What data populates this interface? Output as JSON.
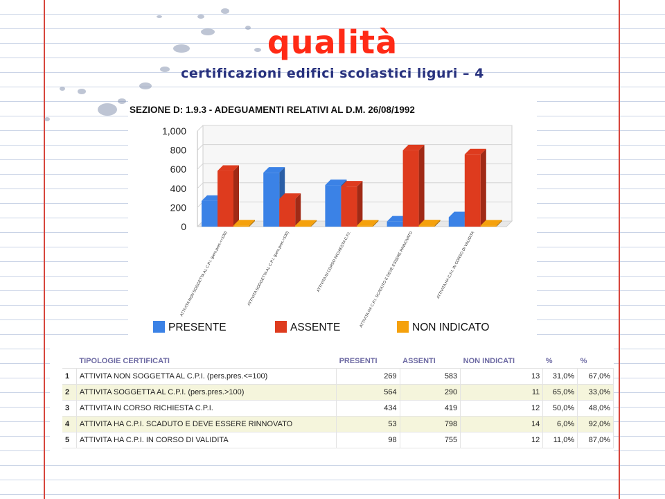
{
  "header": {
    "title": "qualità",
    "subtitle": "certificazioni edifici scolastici liguri – 4"
  },
  "colors": {
    "title": "#ff2a16",
    "subtitle": "#27317e",
    "margin_line": "#d7453c",
    "presente": "#3b82e6",
    "assente": "#de3b1e",
    "non_indicato": "#f5a10c",
    "row_highlight": "#f5f5dc"
  },
  "chart_data": {
    "type": "bar",
    "title": "SEZIONE D: 1.9.3 - ADEGUAMENTI RELATIVI AL D.M. 26/08/1992",
    "categories": [
      "ATTIVITA NON SOGGETTA AL C.P.I. (pers.pres.<=100)",
      "ATTIVITA SOGGETTA AL C.P.I. (pers.pres.>100)",
      "ATTIVITA IN CORSO RICHIESTA C.P.I.",
      "ATTIVITA HA C.P.I. SCADUTO E DEVE ESSERE RINNOVATO",
      "ATTIVITA HA C.P.I. IN CORSO DI VALIDITA"
    ],
    "series": [
      {
        "name": "PRESENTE",
        "values": [
          269,
          564,
          434,
          53,
          98
        ]
      },
      {
        "name": "ASSENTE",
        "values": [
          583,
          290,
          419,
          798,
          755
        ]
      },
      {
        "name": "NON INDICATO",
        "values": [
          13,
          11,
          12,
          14,
          12
        ]
      }
    ],
    "yticks": [
      "0",
      "200",
      "400",
      "600",
      "800",
      "1,000"
    ],
    "ylim": [
      0,
      1000
    ],
    "grid": true,
    "legend": "bottom"
  },
  "table": {
    "headers": [
      "TIPOLOGIE CERTIFICATI",
      "PRESENTI",
      "ASSENTI",
      "NON INDICATI",
      "%",
      "%"
    ],
    "rows": [
      {
        "n": "1",
        "tipologia": "ATTIVITA NON SOGGETTA AL C.P.I. (pers.pres.<=100)",
        "presenti": "269",
        "assenti": "583",
        "non_indicati": "13",
        "pct_presenti": "31,0%",
        "pct_assenti": "67,0%"
      },
      {
        "n": "2",
        "tipologia": "ATTIVITA SOGGETTA AL C.P.I. (pers.pres.>100)",
        "presenti": "564",
        "assenti": "290",
        "non_indicati": "11",
        "pct_presenti": "65,0%",
        "pct_assenti": "33,0%"
      },
      {
        "n": "3",
        "tipologia": "ATTIVITA IN CORSO RICHIESTA C.P.I.",
        "presenti": "434",
        "assenti": "419",
        "non_indicati": "12",
        "pct_presenti": "50,0%",
        "pct_assenti": "48,0%"
      },
      {
        "n": "4",
        "tipologia": "ATTIVITA HA C.P.I. SCADUTO E DEVE ESSERE RINNOVATO",
        "presenti": "53",
        "assenti": "798",
        "non_indicati": "14",
        "pct_presenti": "6,0%",
        "pct_assenti": "92,0%"
      },
      {
        "n": "5",
        "tipologia": "ATTIVITA HA C.P.I. IN CORSO DI VALIDITA",
        "presenti": "98",
        "assenti": "755",
        "non_indicati": "12",
        "pct_presenti": "11,0%",
        "pct_assenti": "87,0%"
      }
    ]
  }
}
